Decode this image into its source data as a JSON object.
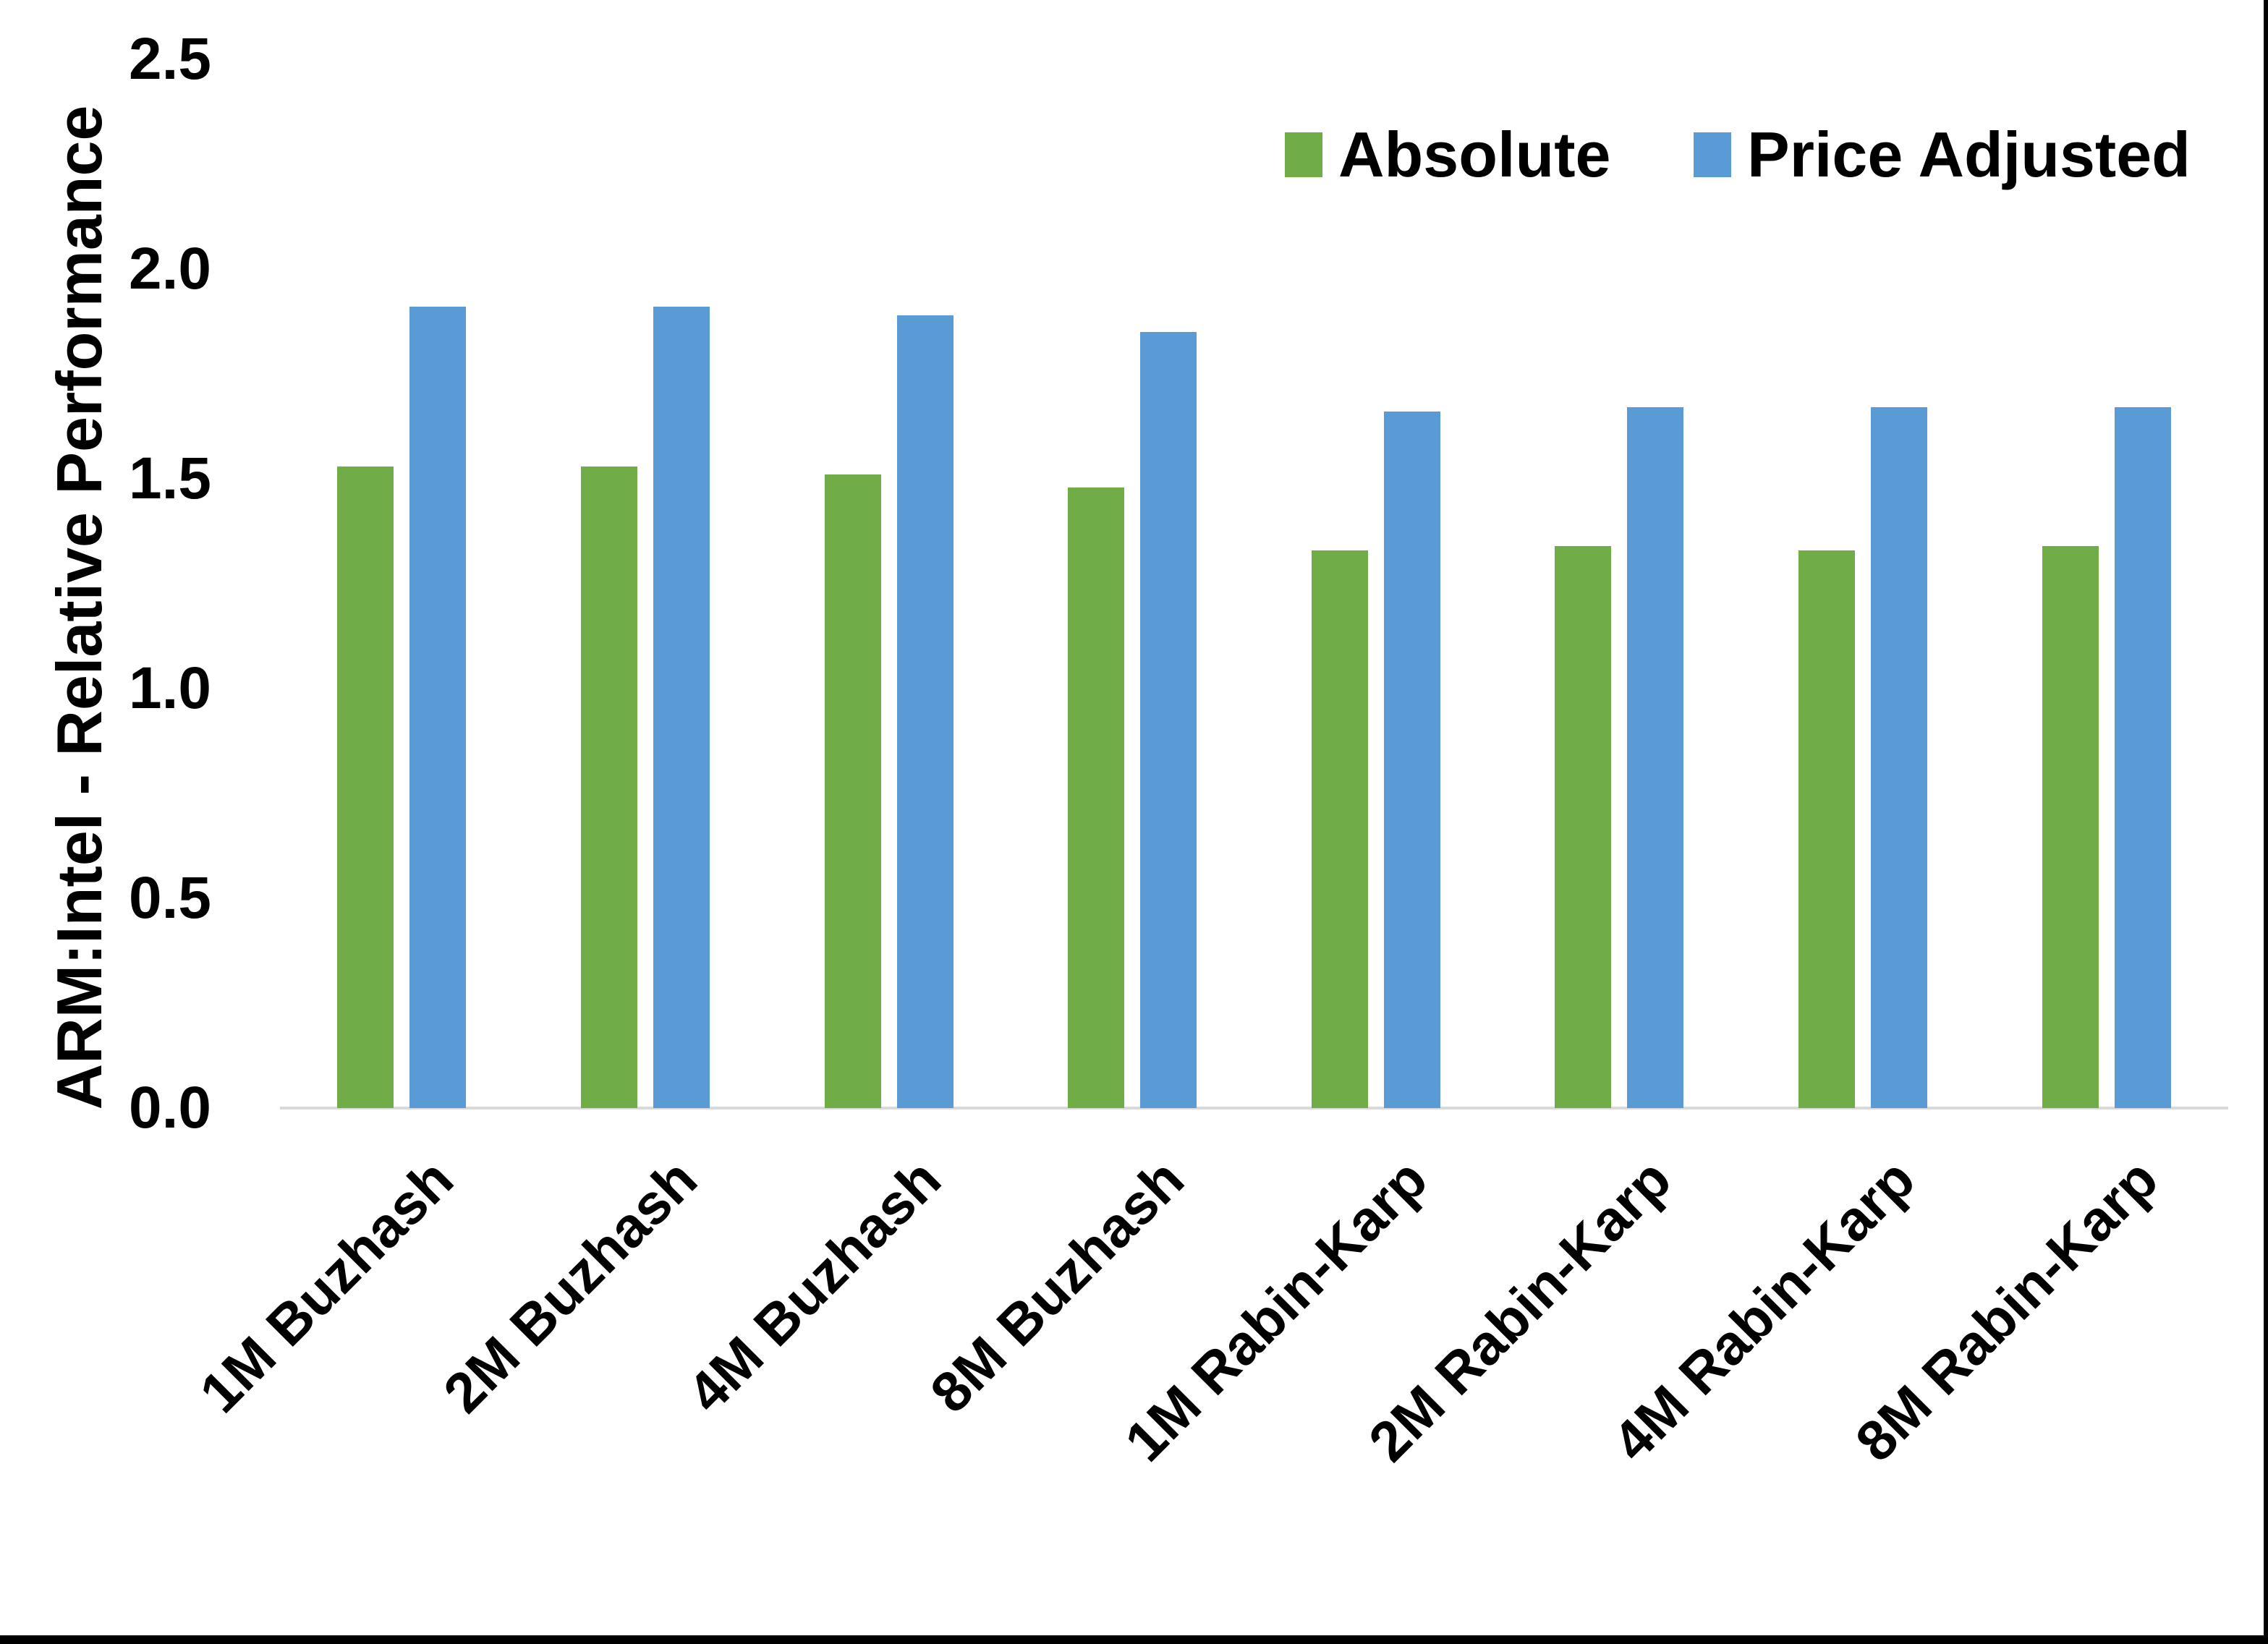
{
  "chart_data": {
    "type": "bar",
    "title": "",
    "xlabel": "",
    "ylabel": "ARM:Intel - Relative Performance",
    "categories": [
      "1M Buzhash",
      "2M Buzhash",
      "4M Buzhash",
      "8M Buzhash",
      "1M Rabin-Karp",
      "2M Rabin-Karp",
      "4M Rabin-Karp",
      "8M Rabin-Karp"
    ],
    "series": [
      {
        "name": "Absolute",
        "color": "#70AD47",
        "values": [
          1.53,
          1.53,
          1.51,
          1.48,
          1.33,
          1.34,
          1.33,
          1.34
        ]
      },
      {
        "name": "Price Adjusted",
        "color": "#5B9BD5",
        "values": [
          1.91,
          1.91,
          1.89,
          1.85,
          1.66,
          1.67,
          1.67,
          1.67
        ]
      }
    ],
    "y_ticks": [
      "0.0",
      "0.5",
      "1.0",
      "1.5",
      "2.0",
      "2.5"
    ],
    "ylim": [
      0.0,
      2.5
    ],
    "grid": false,
    "legend_position": "top-right",
    "axis_line_color": "#D9D9D9",
    "background": "#FFFFFF",
    "text_color": "#000000"
  }
}
